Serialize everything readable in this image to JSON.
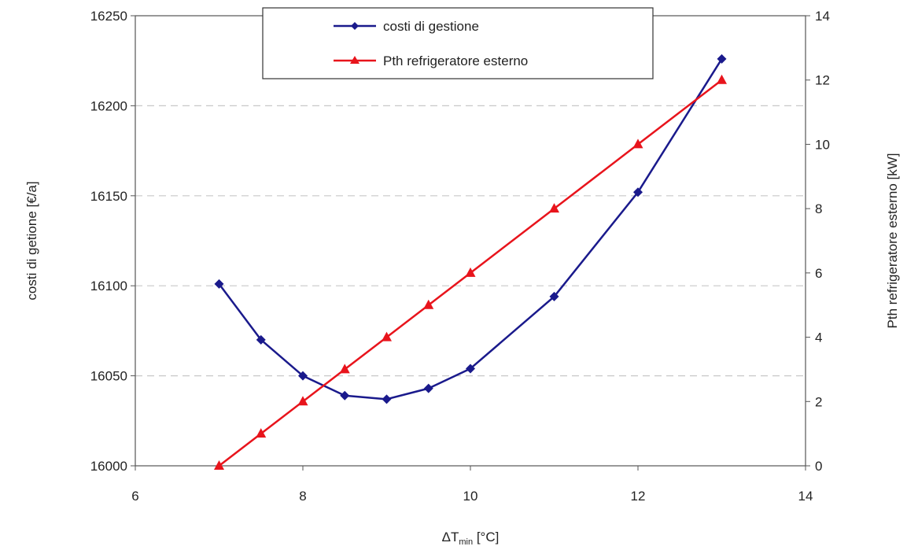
{
  "chart_data": {
    "type": "line",
    "xlabel_main": "ΔT",
    "xlabel_sub": "min",
    "xlabel_unit": " [°C]",
    "ylabel_left": "costi di getione [€/a]",
    "ylabel_right": "Pth refrigeratore esterno [kW]",
    "xlim": [
      6,
      14
    ],
    "xticks": [
      "6",
      "8",
      "10",
      "12",
      "14"
    ],
    "ylim_left": [
      16000,
      16250
    ],
    "yticks_left": [
      "16000",
      "16050",
      "16100",
      "16150",
      "16200",
      "16250"
    ],
    "ylim_right": [
      0,
      14
    ],
    "yticks_right": [
      "0",
      "2",
      "4",
      "6",
      "8",
      "10",
      "12",
      "14"
    ],
    "grid": "horizontal-dashed",
    "legend_position": "top-center",
    "series": [
      {
        "name": "costi di gestione",
        "axis": "left",
        "color": "#1a1a8c",
        "marker": "diamond",
        "x": [
          7,
          7.5,
          8,
          8.5,
          9,
          9.5,
          10,
          11,
          12,
          13
        ],
        "y": [
          16101,
          16070,
          16050,
          16039,
          16037,
          16043,
          16054,
          16094,
          16152,
          16226
        ]
      },
      {
        "name": "Pth refrigeratore esterno",
        "axis": "right",
        "color": "#e8141c",
        "marker": "triangle",
        "x": [
          7,
          7.5,
          8,
          8.5,
          9,
          9.5,
          10,
          11,
          12,
          13
        ],
        "y": [
          0,
          1,
          2,
          3,
          4,
          5,
          6,
          8,
          10,
          12
        ]
      }
    ]
  }
}
